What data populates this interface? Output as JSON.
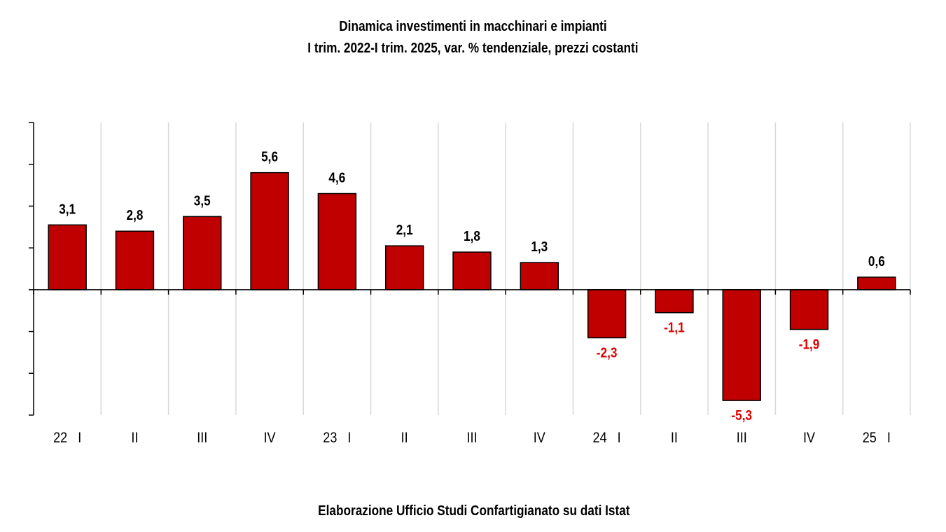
{
  "chart_data": {
    "type": "bar",
    "title": "Dinamica investimenti in macchinari e impianti",
    "subtitle": "I trim. 2022-I trim. 2025, var. % tendenziale, prezzi costanti",
    "source": "Elaborazione Ufficio Studi Confartigianato su dati Istat",
    "categories": [
      "22   I",
      "II",
      "III",
      "IV",
      "23   I",
      "II",
      "III",
      "IV",
      "24   I",
      "II",
      "III",
      "IV",
      "25   I"
    ],
    "values": [
      3.1,
      2.8,
      3.5,
      5.6,
      4.6,
      2.1,
      1.8,
      1.3,
      -2.3,
      -1.1,
      -5.3,
      -1.9,
      0.6
    ],
    "data_labels": [
      "3,1",
      "2,8",
      "3,5",
      "5,6",
      "4,6",
      "2,1",
      "1,8",
      "1,3",
      "-2,3",
      "-1,1",
      "-5,3",
      "-1,9",
      "0,6"
    ],
    "xlabel": "",
    "ylabel": "",
    "ylim": [
      -6,
      8
    ],
    "grid": "vertical",
    "colors": {
      "bar": "#c00000",
      "bar_outline": "#000000",
      "positive_label": "#000000",
      "negative_label": "#e00000",
      "grid": "#d9d9d9"
    }
  }
}
